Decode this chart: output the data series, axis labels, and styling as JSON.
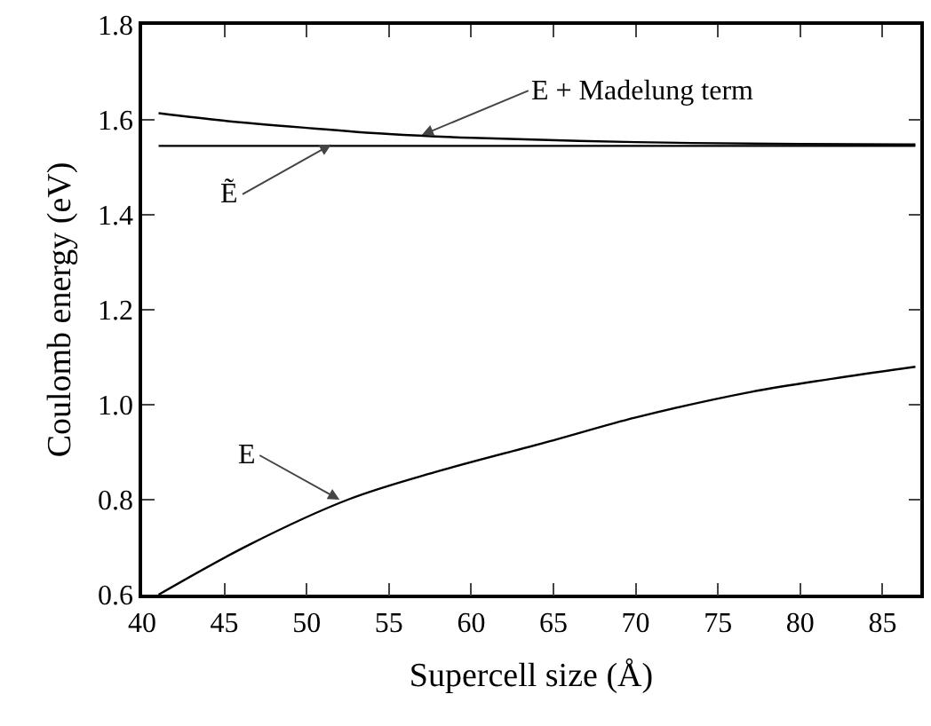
{
  "chart_data": {
    "type": "line",
    "xlabel": "Supercell size (Å)",
    "ylabel": "Coulomb energy (eV)",
    "xlim": [
      40,
      87.3
    ],
    "xticks": [
      40,
      45,
      50,
      55,
      60,
      65,
      70,
      75,
      80,
      85
    ],
    "ylim": [
      0.6,
      1.8
    ],
    "yticks": [
      0.6,
      0.8,
      {
        "value": 1.0,
        "label": "1.0"
      },
      1.2,
      1.4,
      1.6,
      1.8
    ],
    "grid": false,
    "marker": "none",
    "line_style": "solid",
    "series": [
      {
        "color": "#000000",
        "x": [
          41,
          46.5,
          52.5,
          58,
          65,
          70,
          77,
          82,
          87
        ],
        "values": [
          0.6,
          0.705,
          0.8,
          0.86,
          0.925,
          0.973,
          1.027,
          1.055,
          1.08
        ]
      },
      {
        "color": "#000000",
        "x": [
          41,
          45,
          50,
          55,
          60,
          70,
          80,
          87
        ],
        "values": [
          1.614,
          1.598,
          1.583,
          1.57,
          1.562,
          1.553,
          1.549,
          1.548
        ]
      },
      {
        "color": "#000000",
        "x": [
          41,
          87
        ],
        "values": [
          1.545,
          1.545
        ]
      }
    ],
    "annotations": [
      {
        "text": "E + Madelung term",
        "x": 57,
        "y": 1.568
      },
      {
        "text": "Ẽ",
        "x": 51.5,
        "y": 1.548
      },
      {
        "text": "E",
        "x": 52,
        "y": 0.8
      }
    ]
  }
}
